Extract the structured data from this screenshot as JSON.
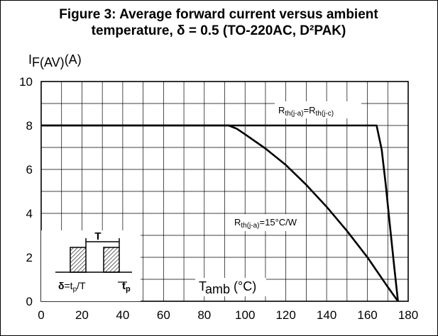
{
  "chart_data": {
    "type": "line",
    "title_line1": "Figure 3: Average forward current versus ambient",
    "title_line2": "temperature, δ = 0.5 (TO-220AC, D²PAK)",
    "ylabel": {
      "main": "I",
      "sub": "F(AV)",
      "unit": "(A)"
    },
    "xlabel": {
      "main": "T",
      "sub": "amb",
      "unit": " (°C)"
    },
    "xlim": [
      0,
      180
    ],
    "ylim": [
      0,
      10
    ],
    "xticks": [
      "0",
      "20",
      "40",
      "60",
      "80",
      "100",
      "120",
      "140",
      "160",
      "180"
    ],
    "yticks": [
      "0",
      "2",
      "4",
      "6",
      "8",
      "10"
    ],
    "grid": true,
    "series": [
      {
        "label": {
          "pre": "R",
          "sub1": "th(j-a)",
          "mid": "=R",
          "sub2": "th(j-c)"
        },
        "x": [
          0,
          164.5,
          167,
          169,
          171,
          173,
          175
        ],
        "y": [
          8.0,
          8.0,
          6.9,
          5.3,
          3.5,
          1.7,
          0.0
        ]
      },
      {
        "label": {
          "pre": "R",
          "sub1": "th(j-a)",
          "mid": "=15°C/W",
          "sub2": ""
        },
        "x": [
          0,
          92,
          96,
          100,
          110,
          120,
          130,
          140,
          150,
          160,
          170,
          175
        ],
        "y": [
          8.0,
          8.0,
          7.85,
          7.6,
          6.95,
          6.2,
          5.3,
          4.3,
          3.2,
          2.0,
          0.65,
          0.0
        ]
      }
    ],
    "inset": {
      "t_label": "T",
      "delta_label": {
        "pre": "δ",
        "mid": "=t",
        "sub": "p",
        "post": "/T"
      },
      "tp_label": {
        "pre": "t",
        "sub": "p"
      }
    }
  }
}
